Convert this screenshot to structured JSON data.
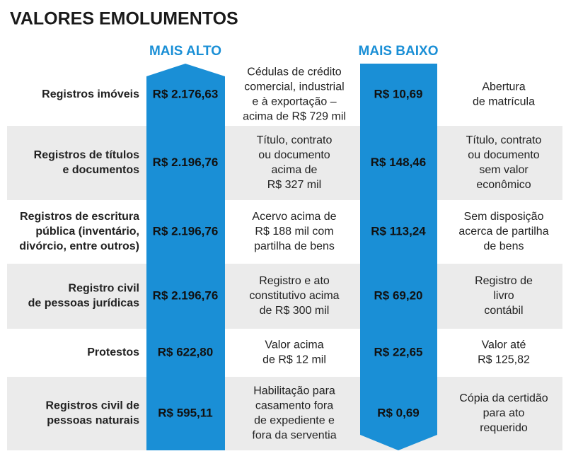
{
  "title": "VALORES EMOLUMENTOS",
  "columns": {
    "high": "MAIS ALTO",
    "low": "MAIS BAIXO"
  },
  "rows": [
    {
      "label": [
        "Registros imóveis"
      ],
      "high": "R$ 2.176,63",
      "high_desc": [
        "Cédulas de crédito",
        "comercial, industrial",
        "e à exportação –",
        "acima de R$ 729 mil"
      ],
      "low": "R$ 10,69",
      "low_desc": [
        "Abertura",
        "de matrícula"
      ]
    },
    {
      "label": [
        "Registros de títulos",
        "e documentos"
      ],
      "high": "R$ 2.196,76",
      "high_desc": [
        "Título, contrato",
        "ou documento",
        "acima de",
        "R$ 327 mil"
      ],
      "low": "R$ 148,46",
      "low_desc": [
        "Título, contrato",
        "ou documento",
        "sem valor",
        "econômico"
      ]
    },
    {
      "label": [
        "Registros de escritura",
        "pública (inventário,",
        "divórcio, entre outros)"
      ],
      "high": "R$ 2.196,76",
      "high_desc": [
        "Acervo acima de",
        "R$ 188 mil com",
        "partilha de bens"
      ],
      "low": "R$ 113,24",
      "low_desc": [
        "Sem disposição",
        "acerca de partilha",
        "de bens"
      ]
    },
    {
      "label": [
        "Registro civil",
        "de pessoas jurídicas"
      ],
      "high": "R$ 2.196,76",
      "high_desc": [
        "Registro e ato",
        "constitutivo acima",
        "de R$ 300 mil"
      ],
      "low": "R$ 69,20",
      "low_desc": [
        "Registro de",
        "livro",
        "contábil"
      ]
    },
    {
      "label": [
        "Protestos"
      ],
      "high": "R$ 622,80",
      "high_desc": [
        "Valor acima",
        "de R$ 12 mil"
      ],
      "low": "R$ 22,65",
      "low_desc": [
        "Valor até",
        "R$ 125,82"
      ]
    },
    {
      "label": [
        "Registros civil de",
        "pessoas naturais"
      ],
      "high": "R$ 595,11",
      "high_desc": [
        "Habilitação para",
        "casamento fora",
        "de expediente e",
        "fora da serventia"
      ],
      "low": "R$ 0,69",
      "low_desc": [
        "Cópia da certidão",
        "para ato",
        "requerido"
      ]
    }
  ]
}
